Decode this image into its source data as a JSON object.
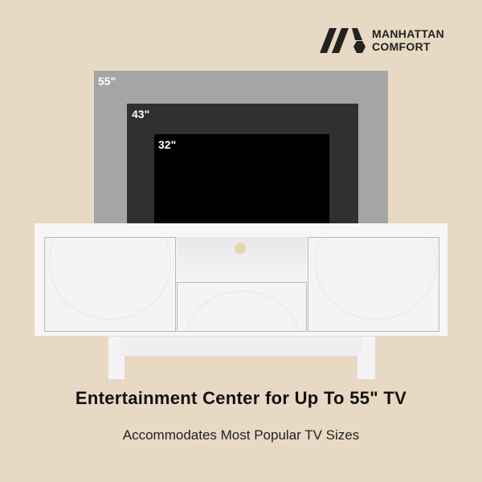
{
  "brand": {
    "name_line1": "MANHATTAN",
    "name_line2": "COMFORT"
  },
  "tv_sizes": [
    {
      "label": "55\""
    },
    {
      "label": "43\""
    },
    {
      "label": "32\""
    }
  ],
  "colors": {
    "background": "#e8d9c4",
    "tv55": "#a5a5a5",
    "tv43": "#303030",
    "tv32": "#000000",
    "cabinet": "#f6f6f7"
  },
  "headline": "Entertainment Center for Up To 55\" TV",
  "subheadline": "Accommodates Most Popular TV Sizes"
}
